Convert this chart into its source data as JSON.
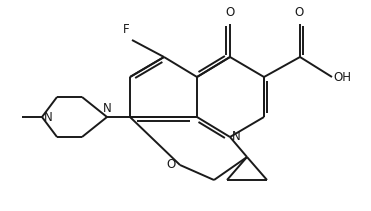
{
  "background_color": "#ffffff",
  "line_color": "#1a1a1a",
  "bond_width": 1.4,
  "figsize": [
    3.68,
    2.07
  ],
  "dpi": 100,
  "font_size": 8.5,
  "font_size_small": 8.0
}
